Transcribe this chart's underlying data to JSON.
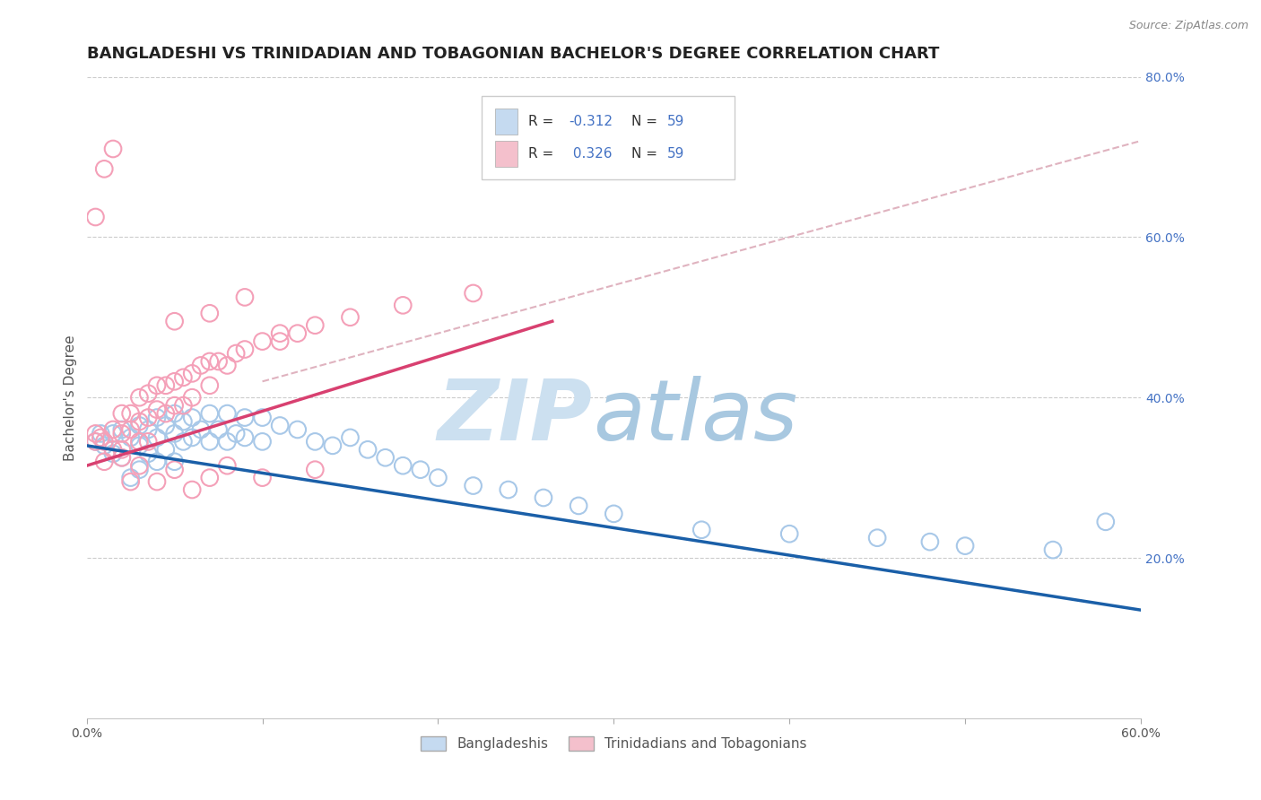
{
  "title": "BANGLADESHI VS TRINIDADIAN AND TOBAGONIAN BACHELOR'S DEGREE CORRELATION CHART",
  "source": "Source: ZipAtlas.com",
  "ylabel": "Bachelor's Degree",
  "xlim": [
    0.0,
    0.6
  ],
  "ylim": [
    0.0,
    0.8
  ],
  "x_ticks": [
    0.0,
    0.1,
    0.2,
    0.3,
    0.4,
    0.5,
    0.6
  ],
  "y_ticks_right": [
    0.2,
    0.4,
    0.6,
    0.8
  ],
  "y_tick_labels_right": [
    "20.0%",
    "40.0%",
    "60.0%",
    "80.0%"
  ],
  "blue_scatter_x": [
    0.005,
    0.008,
    0.01,
    0.015,
    0.015,
    0.02,
    0.02,
    0.025,
    0.025,
    0.03,
    0.03,
    0.03,
    0.035,
    0.035,
    0.04,
    0.04,
    0.04,
    0.045,
    0.045,
    0.05,
    0.05,
    0.05,
    0.055,
    0.055,
    0.06,
    0.06,
    0.065,
    0.07,
    0.07,
    0.075,
    0.08,
    0.08,
    0.085,
    0.09,
    0.09,
    0.1,
    0.1,
    0.11,
    0.12,
    0.13,
    0.14,
    0.15,
    0.16,
    0.17,
    0.18,
    0.19,
    0.2,
    0.22,
    0.24,
    0.26,
    0.28,
    0.3,
    0.35,
    0.4,
    0.45,
    0.48,
    0.5,
    0.55,
    0.58
  ],
  "blue_scatter_y": [
    0.345,
    0.355,
    0.34,
    0.355,
    0.33,
    0.36,
    0.325,
    0.35,
    0.3,
    0.365,
    0.34,
    0.31,
    0.36,
    0.33,
    0.375,
    0.35,
    0.32,
    0.365,
    0.335,
    0.38,
    0.355,
    0.32,
    0.37,
    0.345,
    0.375,
    0.35,
    0.36,
    0.38,
    0.345,
    0.36,
    0.38,
    0.345,
    0.355,
    0.375,
    0.35,
    0.375,
    0.345,
    0.365,
    0.36,
    0.345,
    0.34,
    0.35,
    0.335,
    0.325,
    0.315,
    0.31,
    0.3,
    0.29,
    0.285,
    0.275,
    0.265,
    0.255,
    0.235,
    0.23,
    0.225,
    0.22,
    0.215,
    0.21,
    0.245
  ],
  "pink_scatter_x": [
    0.005,
    0.005,
    0.008,
    0.01,
    0.01,
    0.015,
    0.015,
    0.02,
    0.02,
    0.02,
    0.025,
    0.025,
    0.03,
    0.03,
    0.03,
    0.035,
    0.035,
    0.04,
    0.04,
    0.045,
    0.045,
    0.05,
    0.05,
    0.055,
    0.055,
    0.06,
    0.06,
    0.065,
    0.07,
    0.07,
    0.075,
    0.08,
    0.085,
    0.09,
    0.1,
    0.11,
    0.12,
    0.13,
    0.15,
    0.18,
    0.22,
    0.005,
    0.01,
    0.015,
    0.02,
    0.025,
    0.03,
    0.035,
    0.04,
    0.05,
    0.06,
    0.07,
    0.08,
    0.1,
    0.13,
    0.05,
    0.07,
    0.09,
    0.11
  ],
  "pink_scatter_y": [
    0.345,
    0.355,
    0.35,
    0.345,
    0.32,
    0.36,
    0.335,
    0.38,
    0.355,
    0.325,
    0.38,
    0.36,
    0.4,
    0.37,
    0.345,
    0.405,
    0.375,
    0.415,
    0.385,
    0.415,
    0.38,
    0.42,
    0.39,
    0.425,
    0.39,
    0.43,
    0.4,
    0.44,
    0.445,
    0.415,
    0.445,
    0.44,
    0.455,
    0.46,
    0.47,
    0.47,
    0.48,
    0.49,
    0.5,
    0.515,
    0.53,
    0.625,
    0.685,
    0.71,
    0.335,
    0.295,
    0.315,
    0.345,
    0.295,
    0.31,
    0.285,
    0.3,
    0.315,
    0.3,
    0.31,
    0.495,
    0.505,
    0.525,
    0.48
  ],
  "blue_line_x": [
    0.0,
    0.6
  ],
  "blue_line_y": [
    0.34,
    0.135
  ],
  "pink_line_x": [
    0.0,
    0.265
  ],
  "pink_line_y": [
    0.315,
    0.495
  ],
  "diag_line_x": [
    0.1,
    0.6
  ],
  "diag_line_y": [
    0.42,
    0.72
  ],
  "scatter_color_blue": "#a8c8e8",
  "scatter_color_pink": "#f4a0b8",
  "line_color_blue": "#1a5fa8",
  "line_color_pink": "#d84070",
  "diag_line_color": "#d8a0b0",
  "grid_color": "#cccccc",
  "background_color": "#ffffff",
  "title_fontsize": 13,
  "axis_fontsize": 11,
  "tick_fontsize": 10,
  "watermark_zip_color": "#cce0f0",
  "watermark_atlas_color": "#a8c8e0"
}
